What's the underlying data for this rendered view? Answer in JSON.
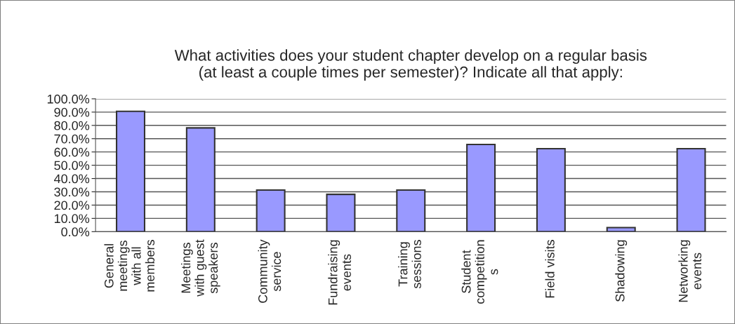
{
  "chart_data": {
    "type": "bar",
    "title": "What activities does your student chapter develop on a regular basis\n(at least a couple times per semester)? Indicate all that apply:",
    "categories": [
      "General\nmeetings\nwith all\nmembers",
      "Meetings\nwith guest\nspeakers",
      "Community\nservice",
      "Fundraising\nevents",
      "Training\nsessions",
      "Student\ncompetition\ns",
      "Field visits",
      "Shadowing",
      "Networking\nevents"
    ],
    "values": [
      90.6,
      78.1,
      31.3,
      28.1,
      31.3,
      65.6,
      62.5,
      3.1,
      62.5
    ],
    "color": "#9999ff",
    "ylim": [
      0,
      100
    ],
    "yticks": [
      {
        "value": 0,
        "label": "0.0%"
      },
      {
        "value": 10,
        "label": "10.0%"
      },
      {
        "value": 20,
        "label": "20.0%"
      },
      {
        "value": 30,
        "label": "30.0%"
      },
      {
        "value": 40,
        "label": "40.0%"
      },
      {
        "value": 50,
        "label": "50.0%"
      },
      {
        "value": 60,
        "label": "60.0%"
      },
      {
        "value": 70,
        "label": "70.0%"
      },
      {
        "value": 80,
        "label": "80.0%"
      },
      {
        "value": 90,
        "label": "90.0%"
      },
      {
        "value": 100,
        "label": "100.0%"
      }
    ],
    "grid": "y"
  }
}
